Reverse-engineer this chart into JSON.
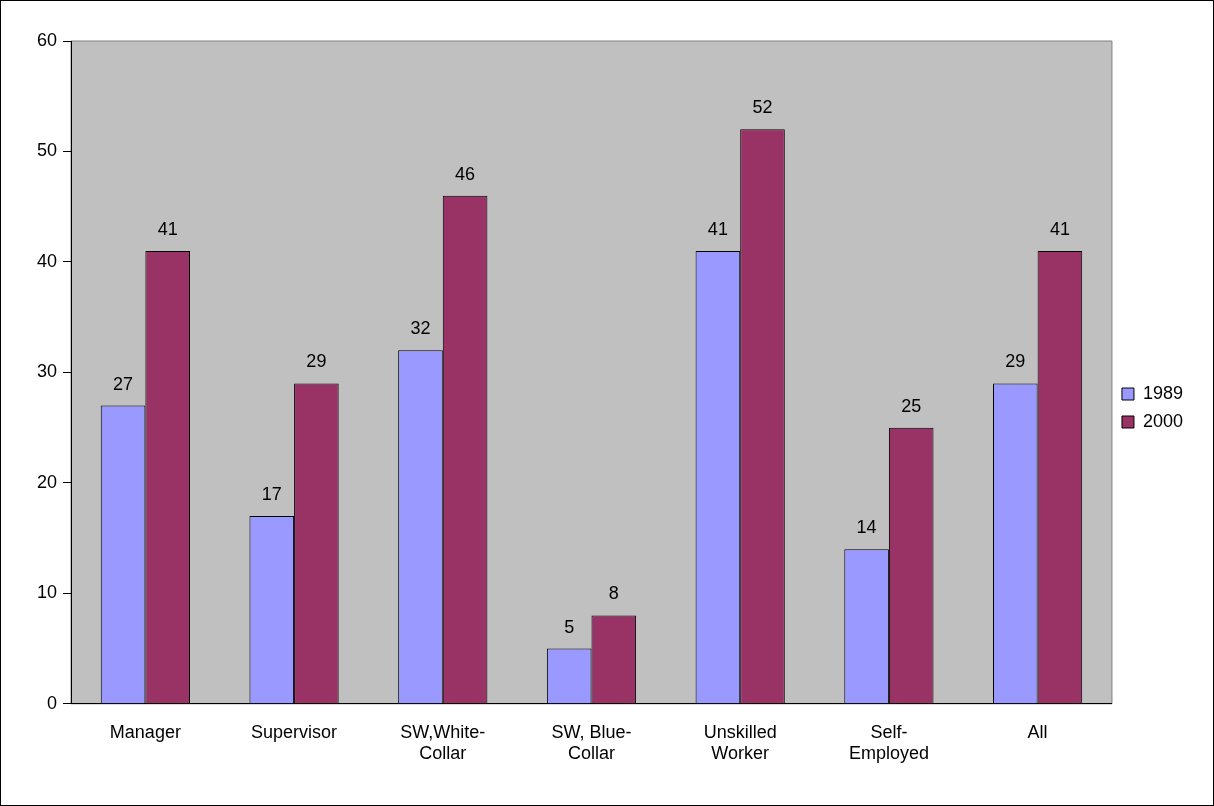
{
  "chart_data": {
    "type": "bar",
    "categories": [
      "Manager",
      "Supervisor",
      "SW,White-Collar",
      "SW, Blue-Collar",
      "Unskilled Worker",
      "Self-Employed",
      "All"
    ],
    "series": [
      {
        "name": "1989",
        "color": "#9999ff",
        "values": [
          27,
          17,
          32,
          5,
          41,
          14,
          29
        ]
      },
      {
        "name": "2000",
        "color": "#993366",
        "values": [
          41,
          29,
          46,
          8,
          52,
          25,
          41
        ]
      }
    ],
    "ylim": [
      0,
      60
    ],
    "yticks": [
      0,
      10,
      20,
      30,
      40,
      50,
      60
    ],
    "grid": false,
    "legend": "right",
    "data_labels": true
  }
}
